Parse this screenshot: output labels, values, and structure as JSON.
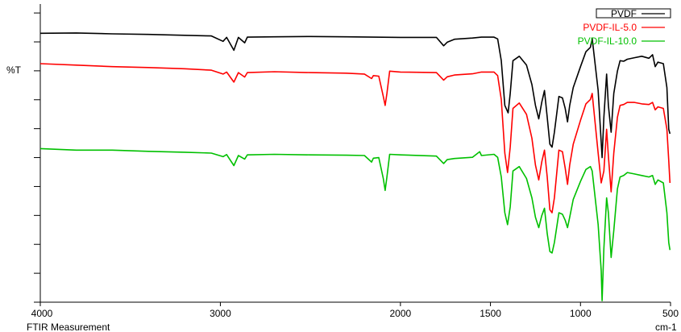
{
  "chart_data": {
    "type": "line",
    "title": "",
    "xlabel": "FTIR Measurement",
    "ylabel": "%T",
    "x_unit": "cm-1",
    "xlim": [
      4000,
      500
    ],
    "x_reversed": true,
    "ylim": [
      0,
      100
    ],
    "x_ticks": [
      4000,
      3000,
      2000,
      1500,
      1000,
      500
    ],
    "grid": false,
    "legend_placement": "top-right",
    "series": [
      {
        "name": "PVDF",
        "color": "#000000",
        "points": [
          [
            4000,
            90.2
          ],
          [
            3800,
            90.3
          ],
          [
            3600,
            90.0
          ],
          [
            3400,
            89.8
          ],
          [
            3200,
            89.5
          ],
          [
            3050,
            89.3
          ],
          [
            2985,
            87.5
          ],
          [
            2965,
            88.8
          ],
          [
            2925,
            84.5
          ],
          [
            2900,
            88.8
          ],
          [
            2865,
            87.0
          ],
          [
            2850,
            88.9
          ],
          [
            2700,
            89.0
          ],
          [
            2500,
            89.1
          ],
          [
            2300,
            89.0
          ],
          [
            2150,
            88.9
          ],
          [
            2000,
            88.8
          ],
          [
            1800,
            88.8
          ],
          [
            1760,
            86.0
          ],
          [
            1740,
            87.2
          ],
          [
            1700,
            88.2
          ],
          [
            1600,
            88.6
          ],
          [
            1550,
            88.9
          ],
          [
            1480,
            88.9
          ],
          [
            1460,
            88.3
          ],
          [
            1440,
            81.0
          ],
          [
            1420,
            66.0
          ],
          [
            1402,
            63.5
          ],
          [
            1390,
            70.0
          ],
          [
            1375,
            81.0
          ],
          [
            1340,
            82.5
          ],
          [
            1300,
            79.5
          ],
          [
            1270,
            73.0
          ],
          [
            1250,
            66.0
          ],
          [
            1232,
            61.5
          ],
          [
            1215,
            67.0
          ],
          [
            1200,
            71.0
          ],
          [
            1185,
            62.0
          ],
          [
            1170,
            53.0
          ],
          [
            1158,
            52.0
          ],
          [
            1145,
            57.0
          ],
          [
            1120,
            69.0
          ],
          [
            1100,
            68.5
          ],
          [
            1085,
            65.0
          ],
          [
            1072,
            60.5
          ],
          [
            1060,
            66.0
          ],
          [
            1040,
            72.0
          ],
          [
            1000,
            79.0
          ],
          [
            970,
            84.0
          ],
          [
            945,
            85.5
          ],
          [
            935,
            88.5
          ],
          [
            902,
            71.0
          ],
          [
            880,
            48.5
          ],
          [
            870,
            62.0
          ],
          [
            855,
            76.5
          ],
          [
            845,
            66.0
          ],
          [
            830,
            57.0
          ],
          [
            815,
            70.0
          ],
          [
            795,
            77.5
          ],
          [
            780,
            81.0
          ],
          [
            760,
            80.8
          ],
          [
            740,
            81.5
          ],
          [
            700,
            82.0
          ],
          [
            660,
            82.5
          ],
          [
            620,
            81.8
          ],
          [
            600,
            83.0
          ],
          [
            585,
            79.0
          ],
          [
            570,
            80.5
          ],
          [
            540,
            80.0
          ],
          [
            520,
            72.0
          ],
          [
            510,
            58.0
          ],
          [
            503,
            56.5
          ]
        ]
      },
      {
        "name": "PVDF-IL-5.0",
        "color": "#ff0000",
        "points": [
          [
            4000,
            80.0
          ],
          [
            3800,
            79.5
          ],
          [
            3600,
            79.0
          ],
          [
            3400,
            78.7
          ],
          [
            3200,
            78.3
          ],
          [
            3050,
            77.8
          ],
          [
            2985,
            76.5
          ],
          [
            2965,
            77.2
          ],
          [
            2925,
            73.8
          ],
          [
            2900,
            77.0
          ],
          [
            2865,
            75.5
          ],
          [
            2850,
            77.0
          ],
          [
            2700,
            77.3
          ],
          [
            2500,
            77.0
          ],
          [
            2300,
            76.8
          ],
          [
            2200,
            76.5
          ],
          [
            2160,
            75.0
          ],
          [
            2150,
            76.0
          ],
          [
            2120,
            75.8
          ],
          [
            2095,
            69.0
          ],
          [
            2085,
            66.0
          ],
          [
            2075,
            70.0
          ],
          [
            2060,
            77.5
          ],
          [
            2000,
            77.2
          ],
          [
            1800,
            77.0
          ],
          [
            1760,
            74.5
          ],
          [
            1740,
            75.6
          ],
          [
            1700,
            76.2
          ],
          [
            1600,
            76.6
          ],
          [
            1550,
            77.2
          ],
          [
            1480,
            77.2
          ],
          [
            1460,
            76.0
          ],
          [
            1440,
            68.0
          ],
          [
            1420,
            50.0
          ],
          [
            1405,
            43.5
          ],
          [
            1390,
            52.0
          ],
          [
            1375,
            65.0
          ],
          [
            1340,
            66.8
          ],
          [
            1300,
            63.0
          ],
          [
            1270,
            55.0
          ],
          [
            1250,
            46.0
          ],
          [
            1232,
            41.0
          ],
          [
            1215,
            47.0
          ],
          [
            1200,
            51.0
          ],
          [
            1185,
            42.0
          ],
          [
            1170,
            31.0
          ],
          [
            1158,
            30.0
          ],
          [
            1145,
            35.0
          ],
          [
            1120,
            51.0
          ],
          [
            1100,
            50.5
          ],
          [
            1085,
            45.0
          ],
          [
            1072,
            39.5
          ],
          [
            1060,
            46.0
          ],
          [
            1040,
            53.0
          ],
          [
            1000,
            61.0
          ],
          [
            970,
            66.5
          ],
          [
            945,
            68.0
          ],
          [
            935,
            70.0
          ],
          [
            902,
            50.0
          ],
          [
            885,
            40.0
          ],
          [
            870,
            44.0
          ],
          [
            855,
            58.0
          ],
          [
            845,
            49.0
          ],
          [
            830,
            37.0
          ],
          [
            815,
            50.0
          ],
          [
            795,
            62.0
          ],
          [
            780,
            66.0
          ],
          [
            760,
            66.3
          ],
          [
            740,
            67.0
          ],
          [
            700,
            67.0
          ],
          [
            660,
            66.5
          ],
          [
            620,
            66.3
          ],
          [
            600,
            67.0
          ],
          [
            585,
            64.5
          ],
          [
            570,
            65.5
          ],
          [
            540,
            65.0
          ],
          [
            520,
            58.0
          ],
          [
            510,
            47.5
          ],
          [
            503,
            40.0
          ]
        ]
      },
      {
        "name": "PVDF-IL-10.0",
        "color": "#00c000",
        "points": [
          [
            4000,
            51.5
          ],
          [
            3800,
            51.0
          ],
          [
            3600,
            51.0
          ],
          [
            3400,
            50.6
          ],
          [
            3200,
            50.3
          ],
          [
            3050,
            50.0
          ],
          [
            2985,
            48.8
          ],
          [
            2965,
            49.5
          ],
          [
            2925,
            45.8
          ],
          [
            2900,
            49.2
          ],
          [
            2865,
            48.0
          ],
          [
            2850,
            49.4
          ],
          [
            2700,
            49.6
          ],
          [
            2500,
            49.4
          ],
          [
            2300,
            49.3
          ],
          [
            2200,
            49.2
          ],
          [
            2160,
            47.0
          ],
          [
            2150,
            48.3
          ],
          [
            2120,
            48.5
          ],
          [
            2095,
            41.5
          ],
          [
            2085,
            37.5
          ],
          [
            2075,
            42.0
          ],
          [
            2060,
            49.6
          ],
          [
            2000,
            49.4
          ],
          [
            1800,
            49.0
          ],
          [
            1760,
            46.5
          ],
          [
            1740,
            47.8
          ],
          [
            1700,
            48.2
          ],
          [
            1600,
            48.6
          ],
          [
            1560,
            50.5
          ],
          [
            1550,
            49.2
          ],
          [
            1480,
            49.6
          ],
          [
            1460,
            48.6
          ],
          [
            1440,
            42.0
          ],
          [
            1420,
            30.0
          ],
          [
            1405,
            26.0
          ],
          [
            1390,
            32.0
          ],
          [
            1375,
            44.0
          ],
          [
            1340,
            45.5
          ],
          [
            1300,
            41.5
          ],
          [
            1270,
            35.0
          ],
          [
            1250,
            28.5
          ],
          [
            1232,
            25.0
          ],
          [
            1215,
            29.0
          ],
          [
            1200,
            31.5
          ],
          [
            1185,
            23.0
          ],
          [
            1170,
            17.0
          ],
          [
            1158,
            16.5
          ],
          [
            1145,
            20.0
          ],
          [
            1120,
            30.0
          ],
          [
            1100,
            29.5
          ],
          [
            1085,
            27.5
          ],
          [
            1072,
            25.0
          ],
          [
            1060,
            28.5
          ],
          [
            1040,
            34.5
          ],
          [
            1000,
            40.5
          ],
          [
            970,
            44.5
          ],
          [
            945,
            45.5
          ],
          [
            935,
            44.0
          ],
          [
            902,
            26.0
          ],
          [
            885,
            10.5
          ],
          [
            880,
            0.5
          ],
          [
            870,
            18.0
          ],
          [
            855,
            35.0
          ],
          [
            845,
            30.0
          ],
          [
            830,
            15.0
          ],
          [
            815,
            24.0
          ],
          [
            795,
            38.0
          ],
          [
            780,
            42.0
          ],
          [
            760,
            42.5
          ],
          [
            740,
            43.5
          ],
          [
            700,
            43.0
          ],
          [
            660,
            42.5
          ],
          [
            620,
            42.0
          ],
          [
            600,
            42.5
          ],
          [
            585,
            39.5
          ],
          [
            570,
            41.0
          ],
          [
            540,
            40.0
          ],
          [
            520,
            30.0
          ],
          [
            510,
            20.0
          ],
          [
            503,
            17.5
          ]
        ]
      }
    ]
  }
}
